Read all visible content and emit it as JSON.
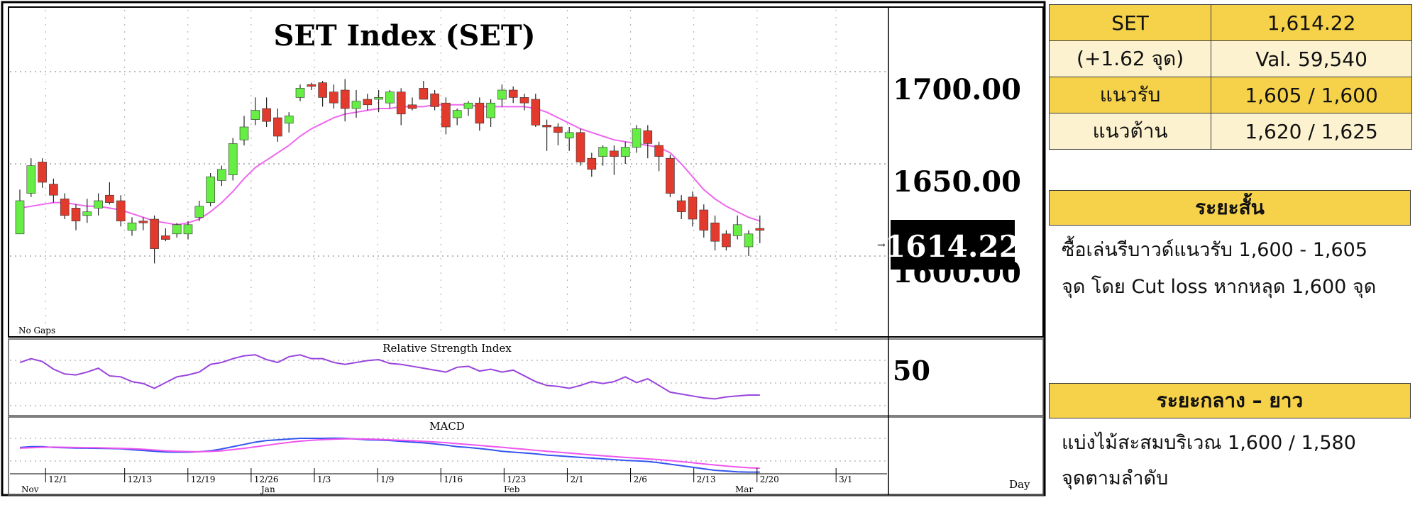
{
  "chart_data": {
    "type": "candlestick",
    "title": "SET Index (SET)",
    "price_ticks": [
      "1700.00",
      "1650.00",
      "1600.00"
    ],
    "current_price_label": "1614.22",
    "no_gaps_label": "No Gaps",
    "rsi_title": "Relative Strength Index",
    "rsi_tick": "50",
    "macd_title": "MACD",
    "x_axis_unit": "Day",
    "date_ticks": [
      "12/1",
      "12/13",
      "12/19",
      "12/26",
      "1/3",
      "1/9",
      "1/16",
      "1/23",
      "2/1",
      "2/6",
      "2/13",
      "2/20",
      "3/1"
    ],
    "month_labels": [
      "Nov",
      "Jan",
      "Feb",
      "Mar"
    ],
    "ohlc": [
      {
        "o": 1612,
        "h": 1636,
        "l": 1613,
        "c": 1630
      },
      {
        "o": 1634,
        "h": 1653,
        "l": 1632,
        "c": 1649
      },
      {
        "o": 1651,
        "h": 1653,
        "l": 1637,
        "c": 1640
      },
      {
        "o": 1639,
        "h": 1642,
        "l": 1629,
        "c": 1633
      },
      {
        "o": 1631,
        "h": 1634,
        "l": 1620,
        "c": 1622
      },
      {
        "o": 1626,
        "h": 1628,
        "l": 1614,
        "c": 1619
      },
      {
        "o": 1622,
        "h": 1631,
        "l": 1618,
        "c": 1624
      },
      {
        "o": 1626,
        "h": 1634,
        "l": 1622,
        "c": 1630
      },
      {
        "o": 1633,
        "h": 1640,
        "l": 1628,
        "c": 1629
      },
      {
        "o": 1630,
        "h": 1633,
        "l": 1616,
        "c": 1619
      },
      {
        "o": 1614,
        "h": 1621,
        "l": 1611,
        "c": 1618
      },
      {
        "o": 1619,
        "h": 1621,
        "l": 1614,
        "c": 1618
      },
      {
        "o": 1620,
        "h": 1622,
        "l": 1596,
        "c": 1604
      },
      {
        "o": 1611,
        "h": 1615,
        "l": 1608,
        "c": 1609
      },
      {
        "o": 1612,
        "h": 1618,
        "l": 1610,
        "c": 1617
      },
      {
        "o": 1612,
        "h": 1619,
        "l": 1609,
        "c": 1617
      },
      {
        "o": 1621,
        "h": 1630,
        "l": 1619,
        "c": 1627
      },
      {
        "o": 1629,
        "h": 1645,
        "l": 1627,
        "c": 1643
      },
      {
        "o": 1641,
        "h": 1649,
        "l": 1638,
        "c": 1647
      },
      {
        "o": 1644,
        "h": 1664,
        "l": 1641,
        "c": 1661
      },
      {
        "o": 1663,
        "h": 1676,
        "l": 1660,
        "c": 1670
      },
      {
        "o": 1674,
        "h": 1686,
        "l": 1671,
        "c": 1679
      },
      {
        "o": 1680,
        "h": 1686,
        "l": 1670,
        "c": 1673
      },
      {
        "o": 1675,
        "h": 1680,
        "l": 1662,
        "c": 1665
      },
      {
        "o": 1672,
        "h": 1678,
        "l": 1667,
        "c": 1676
      },
      {
        "o": 1686,
        "h": 1693,
        "l": 1684,
        "c": 1691
      },
      {
        "o": 1693,
        "h": 1694,
        "l": 1690,
        "c": 1692
      },
      {
        "o": 1694,
        "h": 1695,
        "l": 1681,
        "c": 1686
      },
      {
        "o": 1689,
        "h": 1693,
        "l": 1680,
        "c": 1683
      },
      {
        "o": 1690,
        "h": 1696,
        "l": 1673,
        "c": 1680
      },
      {
        "o": 1680,
        "h": 1690,
        "l": 1675,
        "c": 1684
      },
      {
        "o": 1685,
        "h": 1688,
        "l": 1679,
        "c": 1682
      },
      {
        "o": 1685,
        "h": 1690,
        "l": 1678,
        "c": 1686
      },
      {
        "o": 1683,
        "h": 1690,
        "l": 1680,
        "c": 1689
      },
      {
        "o": 1689,
        "h": 1691,
        "l": 1671,
        "c": 1677
      },
      {
        "o": 1682,
        "h": 1686,
        "l": 1679,
        "c": 1680
      },
      {
        "o": 1691,
        "h": 1695,
        "l": 1686,
        "c": 1685
      },
      {
        "o": 1688,
        "h": 1690,
        "l": 1679,
        "c": 1681
      },
      {
        "o": 1683,
        "h": 1686,
        "l": 1666,
        "c": 1670
      },
      {
        "o": 1675,
        "h": 1680,
        "l": 1671,
        "c": 1679
      },
      {
        "o": 1680,
        "h": 1684,
        "l": 1676,
        "c": 1683
      },
      {
        "o": 1683,
        "h": 1686,
        "l": 1668,
        "c": 1672
      },
      {
        "o": 1675,
        "h": 1685,
        "l": 1670,
        "c": 1683
      },
      {
        "o": 1685,
        "h": 1693,
        "l": 1681,
        "c": 1690
      },
      {
        "o": 1690,
        "h": 1692,
        "l": 1683,
        "c": 1686
      },
      {
        "o": 1686,
        "h": 1688,
        "l": 1679,
        "c": 1683
      },
      {
        "o": 1685,
        "h": 1688,
        "l": 1670,
        "c": 1671
      },
      {
        "o": 1671,
        "h": 1674,
        "l": 1657,
        "c": 1670
      },
      {
        "o": 1670,
        "h": 1672,
        "l": 1660,
        "c": 1667
      },
      {
        "o": 1664,
        "h": 1670,
        "l": 1657,
        "c": 1667
      },
      {
        "o": 1667,
        "h": 1669,
        "l": 1649,
        "c": 1651
      },
      {
        "o": 1653,
        "h": 1656,
        "l": 1643,
        "c": 1647
      },
      {
        "o": 1654,
        "h": 1660,
        "l": 1649,
        "c": 1659
      },
      {
        "o": 1657,
        "h": 1660,
        "l": 1644,
        "c": 1654
      },
      {
        "o": 1654,
        "h": 1662,
        "l": 1650,
        "c": 1659
      },
      {
        "o": 1659,
        "h": 1671,
        "l": 1656,
        "c": 1669
      },
      {
        "o": 1668,
        "h": 1671,
        "l": 1653,
        "c": 1661
      },
      {
        "o": 1660,
        "h": 1662,
        "l": 1646,
        "c": 1654
      },
      {
        "o": 1653,
        "h": 1655,
        "l": 1632,
        "c": 1634
      },
      {
        "o": 1630,
        "h": 1633,
        "l": 1620,
        "c": 1624
      },
      {
        "o": 1632,
        "h": 1635,
        "l": 1616,
        "c": 1620
      },
      {
        "o": 1625,
        "h": 1628,
        "l": 1610,
        "c": 1614
      },
      {
        "o": 1618,
        "h": 1622,
        "l": 1603,
        "c": 1608
      },
      {
        "o": 1612,
        "h": 1614,
        "l": 1603,
        "c": 1605
      },
      {
        "o": 1611,
        "h": 1622,
        "l": 1609,
        "c": 1617
      },
      {
        "o": 1605,
        "h": 1614,
        "l": 1600,
        "c": 1612
      },
      {
        "o": 1615,
        "h": 1622,
        "l": 1607,
        "c": 1614
      }
    ],
    "moving_average": [
      1626,
      1627,
      1628,
      1629,
      1629,
      1628,
      1627,
      1627,
      1626,
      1625,
      1623,
      1621,
      1619,
      1618,
      1617,
      1618,
      1620,
      1624,
      1629,
      1635,
      1642,
      1648,
      1652,
      1656,
      1660,
      1665,
      1669,
      1672,
      1675,
      1677,
      1678,
      1679,
      1680,
      1680,
      1681,
      1681,
      1681,
      1682,
      1682,
      1682,
      1682,
      1681,
      1681,
      1681,
      1681,
      1681,
      1680,
      1678,
      1675,
      1672,
      1669,
      1667,
      1665,
      1663,
      1662,
      1661,
      1660,
      1659,
      1656,
      1650,
      1643,
      1636,
      1631,
      1627,
      1624,
      1621,
      1619
    ],
    "rsi": [
      62,
      66,
      63,
      55,
      50,
      49,
      52,
      56,
      48,
      47,
      42,
      40,
      35,
      41,
      47,
      49,
      52,
      60,
      62,
      66,
      69,
      70,
      65,
      62,
      68,
      70,
      66,
      66,
      62,
      60,
      62,
      64,
      65,
      61,
      60,
      58,
      56,
      54,
      52,
      57,
      58,
      53,
      55,
      52,
      54,
      48,
      42,
      38,
      37,
      35,
      38,
      42,
      40,
      42,
      47,
      41,
      45,
      38,
      31,
      29,
      27,
      25,
      24,
      26,
      27,
      28,
      28
    ],
    "macd": [
      1,
      1.5,
      1.5,
      1,
      0.8,
      0.6,
      0.5,
      0.4,
      0.3,
      0.1,
      -0.5,
      -1,
      -1.5,
      -2,
      -2.1,
      -2.1,
      -1.8,
      -1.2,
      0,
      1.5,
      3,
      4.5,
      5.5,
      6,
      6.5,
      7,
      7,
      7,
      7.1,
      7,
      6.5,
      6,
      5.8,
      5.5,
      5,
      4.5,
      4,
      3.3,
      2.5,
      1.5,
      1,
      0.3,
      -0.5,
      -1.5,
      -2.1,
      -2.6,
      -3.2,
      -4,
      -4.5,
      -5,
      -5.5,
      -6,
      -6.5,
      -7,
      -7.5,
      -7.8,
      -8.2,
      -9,
      -10,
      -11,
      -12,
      -13,
      -14,
      -14.5,
      -15,
      -15.2,
      -15.2
    ],
    "macd_signal": [
      0.5,
      0.8,
      1.1,
      1.2,
      1.1,
      1,
      0.9,
      0.8,
      0.6,
      0.4,
      0.2,
      -0.2,
      -0.7,
      -1.2,
      -1.5,
      -1.7,
      -1.8,
      -1.6,
      -1.2,
      -0.4,
      0.4,
      1.4,
      2.4,
      3.4,
      4.3,
      5.1,
      5.7,
      6.1,
      6.4,
      6.6,
      6.6,
      6.5,
      6.3,
      6,
      5.7,
      5.4,
      5,
      4.6,
      4.1,
      3.5,
      2.9,
      2.3,
      1.7,
      1.1,
      0.4,
      -0.2,
      -0.9,
      -1.5,
      -2.1,
      -2.7,
      -3.3,
      -3.9,
      -4.5,
      -5,
      -5.5,
      -6,
      -6.5,
      -7,
      -7.6,
      -8.3,
      -9,
      -9.8,
      -10.5,
      -11.2,
      -11.8,
      -12.3,
      -12.6
    ],
    "colors": {
      "up": "#66ee44",
      "down": "#e23b2e",
      "ma": "#ee66ee",
      "rsi": "#9944dd",
      "macd": "#3355ee",
      "signal": "#ee55ee",
      "label_bg": "#000000",
      "label_fg": "#ffffff"
    }
  },
  "summary_table": {
    "rows": [
      [
        "SET",
        "1,614.22"
      ],
      [
        "(+1.62 จุด)",
        "Val. 59,540"
      ],
      [
        "แนวรับ",
        "1,605 / 1,600"
      ],
      [
        "แนวต้าน",
        "1,620 / 1,625"
      ]
    ]
  },
  "short_term": {
    "heading": "ระยะสั้น",
    "line1": "ซื้อเล่นรีบาวด์แนวรับ 1,600 - 1,605",
    "line2": "จุด โดย Cut loss หากหลุด 1,600 จุด"
  },
  "long_term": {
    "heading": "ระยะกลาง – ยาว",
    "line1": "แบ่งไม้สะสมบริเวณ 1,600 / 1,580",
    "line2": "จุดตามลำดับ"
  }
}
